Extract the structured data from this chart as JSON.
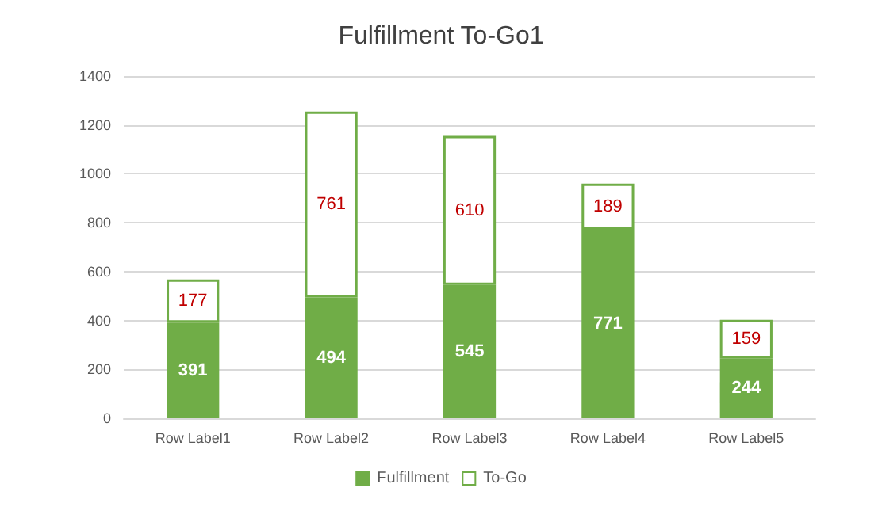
{
  "chart_data": {
    "type": "bar",
    "title": "Fulfillment To-Go1",
    "categories": [
      "Row Label1",
      "Row Label2",
      "Row Label3",
      "Row Label4",
      "Row Label5"
    ],
    "series": [
      {
        "name": "Fulfillment",
        "color": "#70ad47",
        "values": [
          391,
          494,
          545,
          771,
          244
        ]
      },
      {
        "name": "To-Go",
        "color": "#ffffff",
        "values": [
          177,
          761,
          610,
          189,
          159
        ]
      }
    ],
    "stacked": true,
    "ylim": [
      0,
      1400
    ],
    "yticks": [
      0,
      200,
      400,
      600,
      800,
      1000,
      1200,
      1400
    ],
    "grid": "y",
    "legend": "bottom",
    "data_labels": true
  }
}
